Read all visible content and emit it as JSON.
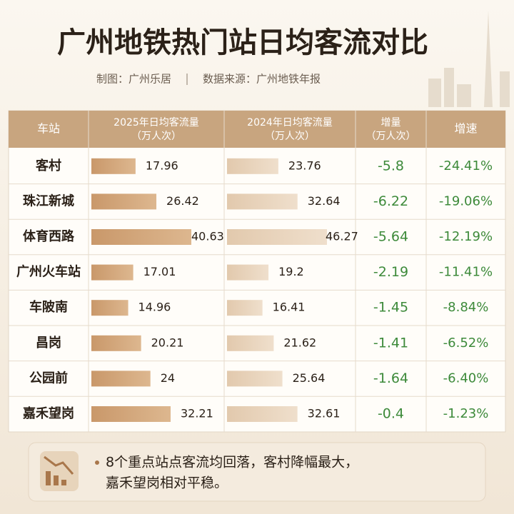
{
  "header": {
    "title": "广州地铁热门站日均客流对比",
    "credit": "制图：广州乐居",
    "source": "数据来源：广州地铁年报"
  },
  "table": {
    "columns": [
      {
        "title": "车站"
      },
      {
        "title": "2025年日均客流量",
        "unit": "（万人次）"
      },
      {
        "title": "2024年日均客流量",
        "unit": "（万人次）"
      },
      {
        "title": "增量",
        "unit": "（万人次）"
      },
      {
        "title": "增速"
      }
    ],
    "rows": [
      {
        "station": "客村",
        "v2025": 17.96,
        "v2024": 23.76,
        "change": -5.8,
        "rate": "-24.41%"
      },
      {
        "station": "珠江新城",
        "v2025": 26.42,
        "v2024": 32.64,
        "change": -6.22,
        "rate": "-19.06%"
      },
      {
        "station": "体育西路",
        "v2025": 40.63,
        "v2024": 46.27,
        "change": -5.64,
        "rate": "-12.19%"
      },
      {
        "station": "广州火车站",
        "v2025": 17.01,
        "v2024": 19.2,
        "change": -2.19,
        "rate": "-11.41%"
      },
      {
        "station": "车陂南",
        "v2025": 14.96,
        "v2024": 16.41,
        "change": -1.45,
        "rate": "-8.84%"
      },
      {
        "station": "昌岗",
        "v2025": 20.21,
        "v2024": 21.62,
        "change": -1.41,
        "rate": "-6.52%"
      },
      {
        "station": "公园前",
        "v2025": 24,
        "v2024": 25.64,
        "change": -1.64,
        "rate": "-6.40%"
      },
      {
        "station": "嘉禾望岗",
        "v2025": 32.21,
        "v2024": 32.61,
        "change": -0.4,
        "rate": "-1.23%"
      }
    ]
  },
  "footer": {
    "lines": [
      "8个重点站点客流均回落，客村降幅最大，",
      "嘉禾望岗相对平稳。"
    ]
  }
}
